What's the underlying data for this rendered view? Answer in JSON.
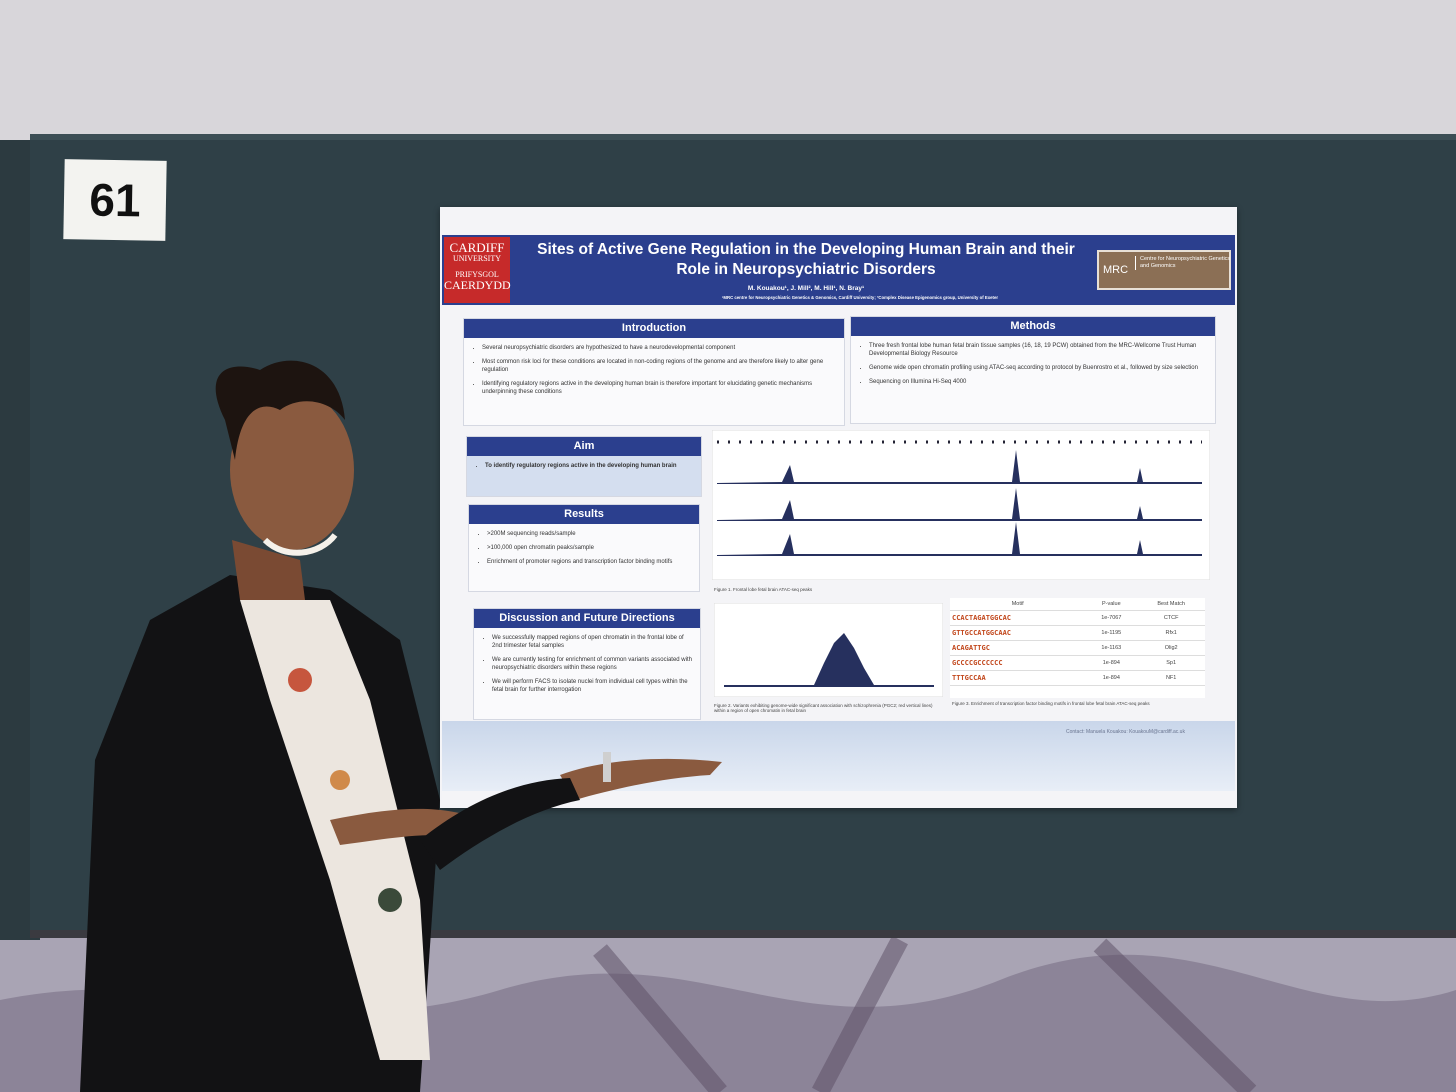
{
  "booth_number": "61",
  "poster": {
    "logo": {
      "line1": "CARDIFF",
      "line2": "UNIVERSITY",
      "line3": "PRIFYSGOL",
      "line4": "CAERDYDD"
    },
    "title": "Sites of Active Gene Regulation in the Developing Human Brain and their Role in Neuropsychiatric Disorders",
    "authors": "M. Kouakou¹, J. Mill², M. Hill¹, N. Bray¹",
    "affiliations": "¹MRC centre for Neuropsychiatric Genetics & Genomics, Cardiff University; ²Complex Disease Epigenomics group, University of Exeter",
    "partner_logo": {
      "abbr": "MRC",
      "text": "Centre for Neuropsychiatric Genetics and Genomics"
    },
    "introduction": {
      "heading": "Introduction",
      "items": [
        "Several neuropsychiatric disorders are hypothesized to have a neurodevelopmental component",
        "Most common risk loci for these conditions are located in non-coding regions of the genome and are therefore likely to alter gene regulation",
        "Identifying regulatory regions active in the developing human brain is therefore important for elucidating genetic mechanisms underpinning these conditions"
      ]
    },
    "methods": {
      "heading": "Methods",
      "items": [
        "Three fresh frontal lobe human fetal brain tissue samples (16, 18, 19 PCW) obtained from the MRC-Wellcome Trust Human Developmental Biology Resource",
        "Genome wide open chromatin profiling using ATAC-seq according to protocol by Buenrostro et al., followed by size selection",
        "Sequencing on Illumina Hi-Seq 4000"
      ]
    },
    "aim": {
      "heading": "Aim",
      "items": [
        "To identify regulatory regions active in the developing human brain"
      ]
    },
    "results": {
      "heading": "Results",
      "items": [
        ">200M sequencing reads/sample",
        ">100,000 open chromatin peaks/sample",
        "Enrichment of promoter regions and transcription factor binding motifs"
      ]
    },
    "discussion": {
      "heading": "Discussion and Future Directions",
      "items": [
        "We successfully mapped regions of open chromatin in the frontal lobe of 2nd trimester fetal samples",
        "We are currently testing for enrichment of common variants associated with neuropsychiatric disorders within these regions",
        "We will perform FACS to isolate nuclei from individual cell types within the fetal brain for further interrogation"
      ]
    },
    "figure1_caption": "Figure 1. Frontal lobe fetal brain ATAC-seq peaks",
    "figure2_caption": "Figure 2. Variants exhibiting genome-wide significant association with schizophrenia (PGC2; red vertical lines) within a region of open chromatin in fetal brain",
    "figure3_caption": "Figure 3. Enrichment of transcription factor binding motifs in frontal lobe fetal brain ATAC-seq peaks",
    "table": {
      "header": [
        "Motif",
        "P-value",
        "Best Match"
      ],
      "rows": [
        [
          "CCACTAGATGGCAC",
          "1e-7067",
          "CTCF"
        ],
        [
          "GTTGCCATGGCAAC",
          "1e-1195",
          "Rfx1"
        ],
        [
          "ACAGATTGC",
          "1e-1163",
          "Olig2"
        ],
        [
          "GCCCCGCCCCCC",
          "1e-894",
          "Sp1"
        ],
        [
          "TTTGCCAA",
          "1e-894",
          "NF1"
        ]
      ]
    },
    "contact": "Contact: Manuela Kouakou: KouakouM@cardiff.ac.uk"
  }
}
